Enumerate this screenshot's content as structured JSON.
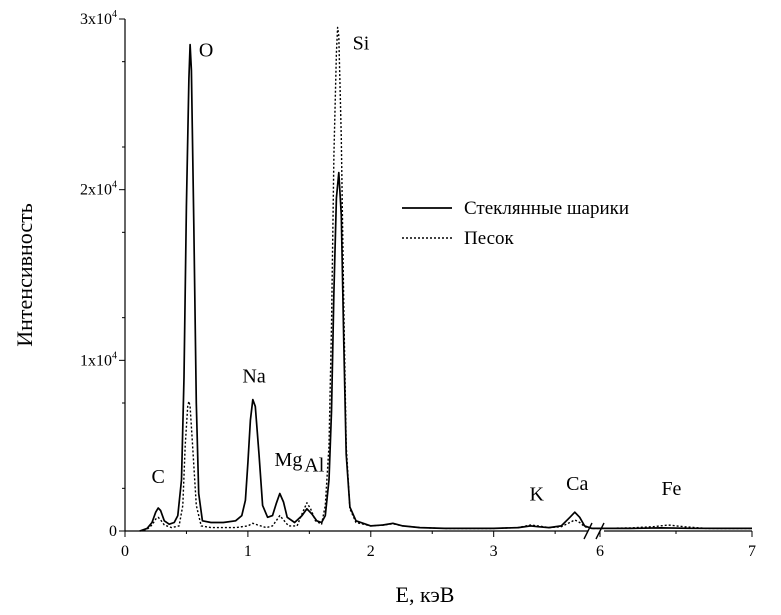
{
  "chart_data": {
    "type": "line",
    "xlabel": "E, кэВ",
    "ylabel": "Интенсивность",
    "xlim": [
      0,
      7
    ],
    "ylim": [
      0,
      30000
    ],
    "x_axis_break": {
      "after": 3.8,
      "resume": 6
    },
    "x_ticks": [
      {
        "value": 0,
        "label": "0"
      },
      {
        "value": 1,
        "label": "1"
      },
      {
        "value": 2,
        "label": "2"
      },
      {
        "value": 3,
        "label": "3"
      },
      {
        "value": 6,
        "label": "6"
      },
      {
        "value": 7,
        "label": "7"
      }
    ],
    "y_ticks": [
      {
        "value": 0,
        "mant": "0",
        "exp": ""
      },
      {
        "value": 10000,
        "mant": "1x10",
        "exp": "4"
      },
      {
        "value": 20000,
        "mant": "2x10",
        "exp": "4"
      },
      {
        "value": 30000,
        "mant": "3x10",
        "exp": "4"
      }
    ],
    "grid": false,
    "legend_position": "right-middle",
    "series": [
      {
        "name": "Стеклянные шарики",
        "style": "solid",
        "points": [
          [
            0.12,
            0
          ],
          [
            0.18,
            150
          ],
          [
            0.22,
            500
          ],
          [
            0.25,
            1100
          ],
          [
            0.27,
            1350
          ],
          [
            0.29,
            1200
          ],
          [
            0.32,
            600
          ],
          [
            0.36,
            400
          ],
          [
            0.4,
            500
          ],
          [
            0.43,
            900
          ],
          [
            0.46,
            3000
          ],
          [
            0.48,
            9000
          ],
          [
            0.5,
            19000
          ],
          [
            0.52,
            26500
          ],
          [
            0.53,
            28500
          ],
          [
            0.54,
            27000
          ],
          [
            0.56,
            18000
          ],
          [
            0.58,
            7500
          ],
          [
            0.6,
            2200
          ],
          [
            0.63,
            600
          ],
          [
            0.7,
            500
          ],
          [
            0.8,
            500
          ],
          [
            0.9,
            600
          ],
          [
            0.95,
            900
          ],
          [
            0.98,
            1800
          ],
          [
            1.0,
            4000
          ],
          [
            1.02,
            6500
          ],
          [
            1.04,
            7700
          ],
          [
            1.06,
            7300
          ],
          [
            1.09,
            4500
          ],
          [
            1.12,
            1500
          ],
          [
            1.16,
            800
          ],
          [
            1.2,
            900
          ],
          [
            1.23,
            1600
          ],
          [
            1.26,
            2200
          ],
          [
            1.29,
            1700
          ],
          [
            1.32,
            800
          ],
          [
            1.38,
            500
          ],
          [
            1.44,
            900
          ],
          [
            1.48,
            1300
          ],
          [
            1.52,
            1000
          ],
          [
            1.56,
            600
          ],
          [
            1.6,
            500
          ],
          [
            1.63,
            900
          ],
          [
            1.66,
            3000
          ],
          [
            1.68,
            7000
          ],
          [
            1.7,
            14000
          ],
          [
            1.72,
            19500
          ],
          [
            1.74,
            21000
          ],
          [
            1.76,
            18500
          ],
          [
            1.78,
            11000
          ],
          [
            1.8,
            4500
          ],
          [
            1.83,
            1400
          ],
          [
            1.88,
            600
          ],
          [
            2.0,
            300
          ],
          [
            2.1,
            350
          ],
          [
            2.18,
            450
          ],
          [
            2.26,
            300
          ],
          [
            2.4,
            200
          ],
          [
            2.6,
            150
          ],
          [
            2.8,
            150
          ],
          [
            3.0,
            150
          ],
          [
            3.2,
            200
          ],
          [
            3.3,
            300
          ],
          [
            3.36,
            250
          ],
          [
            3.45,
            200
          ],
          [
            3.55,
            300
          ],
          [
            3.62,
            800
          ],
          [
            3.66,
            1100
          ],
          [
            3.7,
            800
          ],
          [
            3.74,
            300
          ],
          [
            3.8,
            150
          ],
          [
            6.0,
            150
          ],
          [
            6.2,
            150
          ],
          [
            6.4,
            180
          ],
          [
            6.6,
            160
          ],
          [
            6.8,
            150
          ],
          [
            7.0,
            150
          ]
        ]
      },
      {
        "name": "Песок",
        "style": "dotted",
        "points": [
          [
            0.12,
            0
          ],
          [
            0.18,
            100
          ],
          [
            0.22,
            350
          ],
          [
            0.25,
            700
          ],
          [
            0.27,
            800
          ],
          [
            0.29,
            650
          ],
          [
            0.32,
            350
          ],
          [
            0.38,
            200
          ],
          [
            0.44,
            300
          ],
          [
            0.47,
            1500
          ],
          [
            0.49,
            5000
          ],
          [
            0.51,
            7300
          ],
          [
            0.52,
            7600
          ],
          [
            0.53,
            7300
          ],
          [
            0.55,
            5000
          ],
          [
            0.58,
            1500
          ],
          [
            0.62,
            300
          ],
          [
            0.7,
            200
          ],
          [
            0.8,
            200
          ],
          [
            0.9,
            200
          ],
          [
            1.0,
            300
          ],
          [
            1.04,
            450
          ],
          [
            1.08,
            350
          ],
          [
            1.15,
            200
          ],
          [
            1.2,
            300
          ],
          [
            1.23,
            600
          ],
          [
            1.26,
            900
          ],
          [
            1.29,
            650
          ],
          [
            1.33,
            300
          ],
          [
            1.4,
            300
          ],
          [
            1.44,
            1000
          ],
          [
            1.48,
            1650
          ],
          [
            1.51,
            1300
          ],
          [
            1.55,
            600
          ],
          [
            1.6,
            400
          ],
          [
            1.63,
            1500
          ],
          [
            1.66,
            5000
          ],
          [
            1.68,
            12000
          ],
          [
            1.7,
            22000
          ],
          [
            1.72,
            28000
          ],
          [
            1.73,
            29500
          ],
          [
            1.74,
            29000
          ],
          [
            1.76,
            23000
          ],
          [
            1.78,
            13000
          ],
          [
            1.8,
            5000
          ],
          [
            1.83,
            1300
          ],
          [
            1.88,
            500
          ],
          [
            2.0,
            300
          ],
          [
            2.1,
            350
          ],
          [
            2.18,
            420
          ],
          [
            2.26,
            300
          ],
          [
            2.4,
            200
          ],
          [
            2.6,
            150
          ],
          [
            2.8,
            150
          ],
          [
            3.0,
            150
          ],
          [
            3.2,
            200
          ],
          [
            3.3,
            350
          ],
          [
            3.36,
            300
          ],
          [
            3.45,
            200
          ],
          [
            3.55,
            250
          ],
          [
            3.62,
            500
          ],
          [
            3.66,
            650
          ],
          [
            3.7,
            500
          ],
          [
            3.74,
            250
          ],
          [
            3.8,
            150
          ],
          [
            6.0,
            150
          ],
          [
            6.2,
            180
          ],
          [
            6.35,
            250
          ],
          [
            6.45,
            350
          ],
          [
            6.55,
            250
          ],
          [
            6.7,
            150
          ],
          [
            7.0,
            150
          ]
        ]
      }
    ],
    "peak_labels": [
      {
        "text": "C",
        "x": 0.27,
        "y": 2800
      },
      {
        "text": "O",
        "x": 0.66,
        "y": 27800
      },
      {
        "text": "Na",
        "x": 1.05,
        "y": 8700
      },
      {
        "text": "Mg",
        "x": 1.33,
        "y": 3800
      },
      {
        "text": "Al",
        "x": 1.54,
        "y": 3500
      },
      {
        "text": "Si",
        "x": 1.92,
        "y": 28200
      },
      {
        "text": "K",
        "x": 3.35,
        "y": 1800
      },
      {
        "text": "Ca",
        "x": 3.68,
        "y": 2400
      },
      {
        "text": "Fe",
        "x": 6.47,
        "y": 2100
      }
    ]
  }
}
